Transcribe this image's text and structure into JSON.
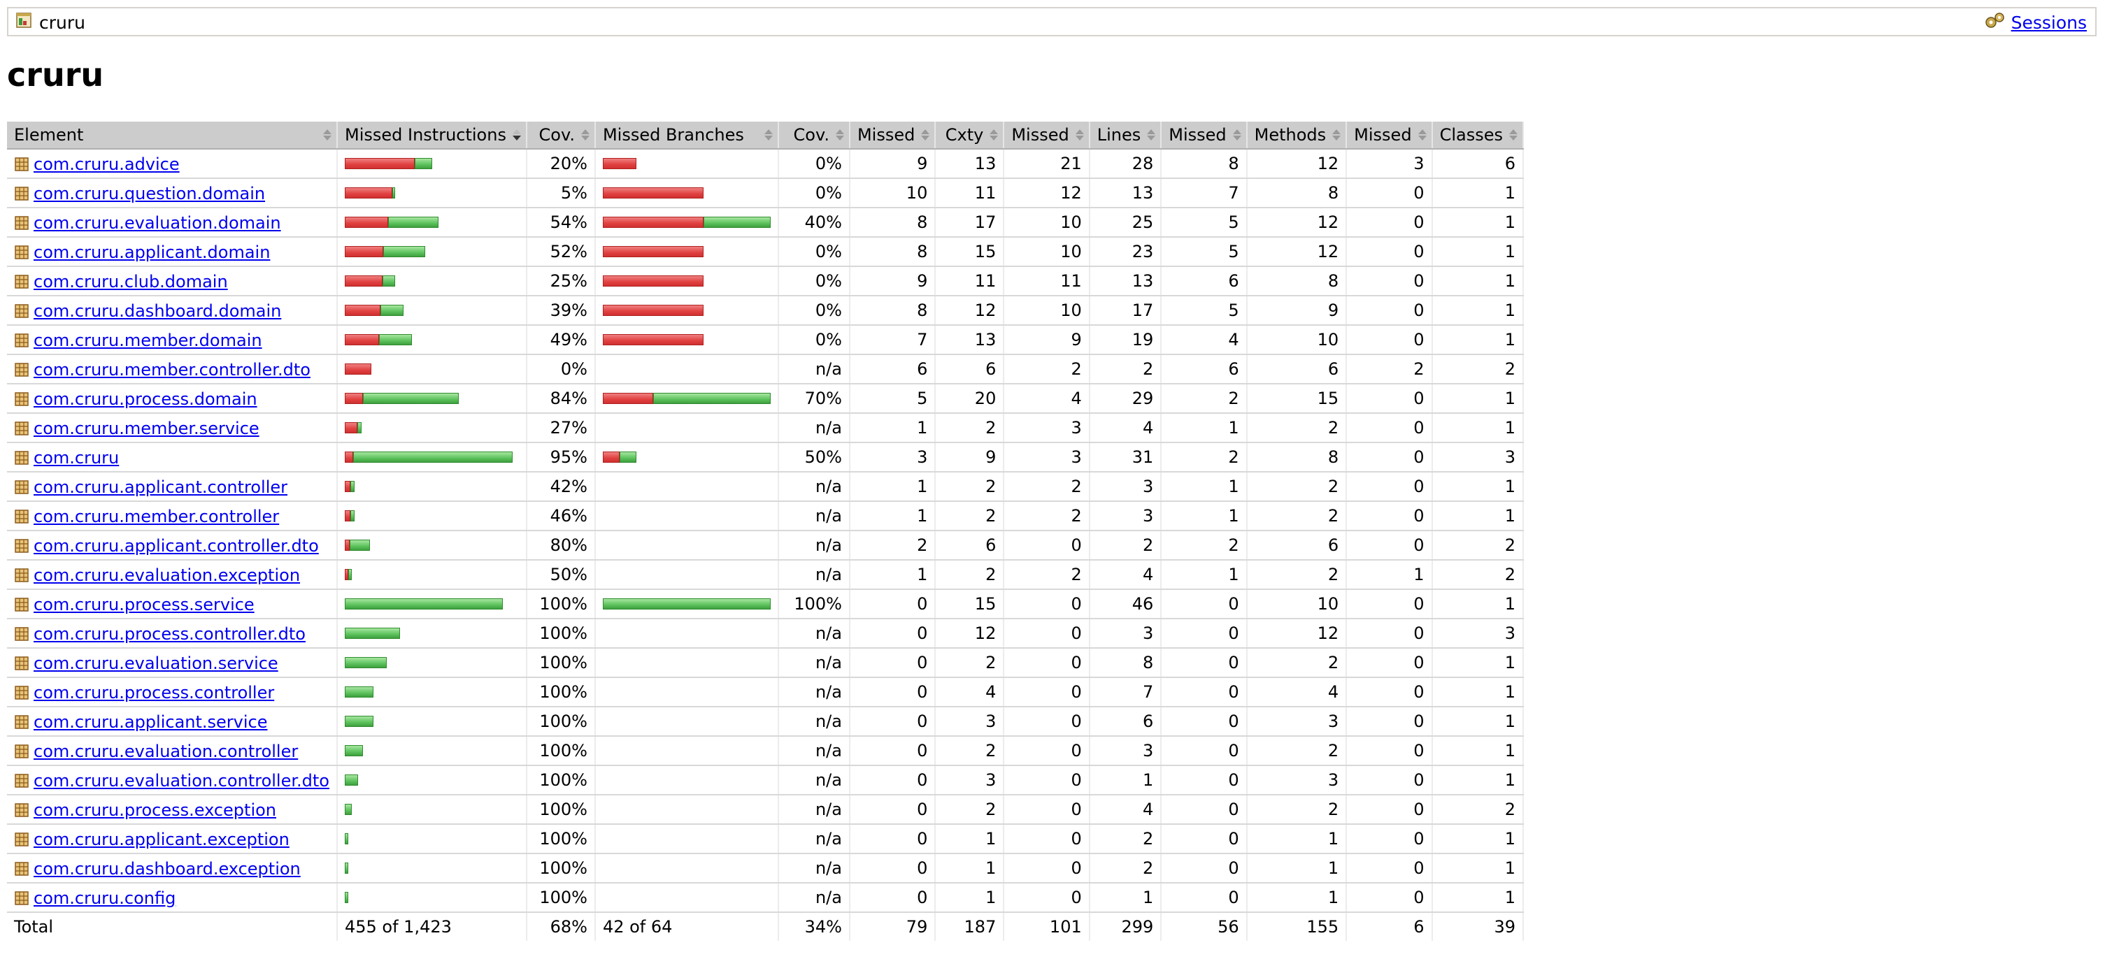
{
  "breadcrumb": {
    "title": "cruru",
    "sessions_label": "Sessions",
    "report_icon": "report-icon",
    "sessions_icon": "sessions-icon"
  },
  "page_title": "cruru",
  "colors": {
    "missed": "#e04040",
    "covered": "#5cc25c",
    "header_bg": "#cccccc",
    "link": "#0000ee"
  },
  "headers": [
    "Element",
    "Missed Instructions",
    "Cov.",
    "Missed Branches",
    "Cov.",
    "Missed",
    "Cxty",
    "Missed",
    "Lines",
    "Missed",
    "Methods",
    "Missed",
    "Classes"
  ],
  "rows": [
    {
      "name": "com.cruru.advice",
      "instr_missed_frac": 0.8,
      "instr_scale": 0.52,
      "instr_cov": "20%",
      "br_missed_frac": 1.0,
      "br_scale": 0.2,
      "br_cov": "0%",
      "cxty_missed": "9",
      "cxty": "13",
      "lines_missed": "21",
      "lines": "28",
      "methods_missed": "8",
      "methods": "12",
      "classes_missed": "3",
      "classes": "6"
    },
    {
      "name": "com.cruru.question.domain",
      "instr_missed_frac": 0.95,
      "instr_scale": 0.3,
      "instr_cov": "5%",
      "br_missed_frac": 1.0,
      "br_scale": 0.6,
      "br_cov": "0%",
      "cxty_missed": "10",
      "cxty": "11",
      "lines_missed": "12",
      "lines": "13",
      "methods_missed": "7",
      "methods": "8",
      "classes_missed": "0",
      "classes": "1"
    },
    {
      "name": "com.cruru.evaluation.domain",
      "instr_missed_frac": 0.46,
      "instr_scale": 0.56,
      "instr_cov": "54%",
      "br_missed_frac": 0.6,
      "br_scale": 1.0,
      "br_cov": "40%",
      "cxty_missed": "8",
      "cxty": "17",
      "lines_missed": "10",
      "lines": "25",
      "methods_missed": "5",
      "methods": "12",
      "classes_missed": "0",
      "classes": "1"
    },
    {
      "name": "com.cruru.applicant.domain",
      "instr_missed_frac": 0.48,
      "instr_scale": 0.48,
      "instr_cov": "52%",
      "br_missed_frac": 1.0,
      "br_scale": 0.6,
      "br_cov": "0%",
      "cxty_missed": "8",
      "cxty": "15",
      "lines_missed": "10",
      "lines": "23",
      "methods_missed": "5",
      "methods": "12",
      "classes_missed": "0",
      "classes": "1"
    },
    {
      "name": "com.cruru.club.domain",
      "instr_missed_frac": 0.75,
      "instr_scale": 0.3,
      "instr_cov": "25%",
      "br_missed_frac": 1.0,
      "br_scale": 0.6,
      "br_cov": "0%",
      "cxty_missed": "9",
      "cxty": "11",
      "lines_missed": "11",
      "lines": "13",
      "methods_missed": "6",
      "methods": "8",
      "classes_missed": "0",
      "classes": "1"
    },
    {
      "name": "com.cruru.dashboard.domain",
      "instr_missed_frac": 0.61,
      "instr_scale": 0.35,
      "instr_cov": "39%",
      "br_missed_frac": 1.0,
      "br_scale": 0.6,
      "br_cov": "0%",
      "cxty_missed": "8",
      "cxty": "12",
      "lines_missed": "10",
      "lines": "17",
      "methods_missed": "5",
      "methods": "9",
      "classes_missed": "0",
      "classes": "1"
    },
    {
      "name": "com.cruru.member.domain",
      "instr_missed_frac": 0.51,
      "instr_scale": 0.4,
      "instr_cov": "49%",
      "br_missed_frac": 1.0,
      "br_scale": 0.6,
      "br_cov": "0%",
      "cxty_missed": "7",
      "cxty": "13",
      "lines_missed": "9",
      "lines": "19",
      "methods_missed": "4",
      "methods": "10",
      "classes_missed": "0",
      "classes": "1"
    },
    {
      "name": "com.cruru.member.controller.dto",
      "instr_missed_frac": 1.0,
      "instr_scale": 0.16,
      "instr_cov": "0%",
      "br_missed_frac": 0,
      "br_scale": 0,
      "br_cov": "n/a",
      "cxty_missed": "6",
      "cxty": "6",
      "lines_missed": "2",
      "lines": "2",
      "methods_missed": "6",
      "methods": "6",
      "classes_missed": "2",
      "classes": "2"
    },
    {
      "name": "com.cruru.process.domain",
      "instr_missed_frac": 0.16,
      "instr_scale": 0.68,
      "instr_cov": "84%",
      "br_missed_frac": 0.3,
      "br_scale": 1.0,
      "br_cov": "70%",
      "cxty_missed": "5",
      "cxty": "20",
      "lines_missed": "4",
      "lines": "29",
      "methods_missed": "2",
      "methods": "15",
      "classes_missed": "0",
      "classes": "1"
    },
    {
      "name": "com.cruru.member.service",
      "instr_missed_frac": 0.73,
      "instr_scale": 0.1,
      "instr_cov": "27%",
      "br_missed_frac": 0,
      "br_scale": 0,
      "br_cov": "n/a",
      "cxty_missed": "1",
      "cxty": "2",
      "lines_missed": "3",
      "lines": "4",
      "methods_missed": "1",
      "methods": "2",
      "classes_missed": "0",
      "classes": "1"
    },
    {
      "name": "com.cruru",
      "instr_missed_frac": 0.05,
      "instr_scale": 1.0,
      "instr_cov": "95%",
      "br_missed_frac": 0.5,
      "br_scale": 0.2,
      "br_cov": "50%",
      "cxty_missed": "3",
      "cxty": "9",
      "lines_missed": "3",
      "lines": "31",
      "methods_missed": "2",
      "methods": "8",
      "classes_missed": "0",
      "classes": "3"
    },
    {
      "name": "com.cruru.applicant.controller",
      "instr_missed_frac": 0.58,
      "instr_scale": 0.06,
      "instr_cov": "42%",
      "br_missed_frac": 0,
      "br_scale": 0,
      "br_cov": "n/a",
      "cxty_missed": "1",
      "cxty": "2",
      "lines_missed": "2",
      "lines": "3",
      "methods_missed": "1",
      "methods": "2",
      "classes_missed": "0",
      "classes": "1"
    },
    {
      "name": "com.cruru.member.controller",
      "instr_missed_frac": 0.54,
      "instr_scale": 0.06,
      "instr_cov": "46%",
      "br_missed_frac": 0,
      "br_scale": 0,
      "br_cov": "n/a",
      "cxty_missed": "1",
      "cxty": "2",
      "lines_missed": "2",
      "lines": "3",
      "methods_missed": "1",
      "methods": "2",
      "classes_missed": "0",
      "classes": "1"
    },
    {
      "name": "com.cruru.applicant.controller.dto",
      "instr_missed_frac": 0.2,
      "instr_scale": 0.15,
      "instr_cov": "80%",
      "br_missed_frac": 0,
      "br_scale": 0,
      "br_cov": "n/a",
      "cxty_missed": "2",
      "cxty": "6",
      "lines_missed": "0",
      "lines": "2",
      "methods_missed": "2",
      "methods": "6",
      "classes_missed": "0",
      "classes": "2"
    },
    {
      "name": "com.cruru.evaluation.exception",
      "instr_missed_frac": 0.5,
      "instr_scale": 0.04,
      "instr_cov": "50%",
      "br_missed_frac": 0,
      "br_scale": 0,
      "br_cov": "n/a",
      "cxty_missed": "1",
      "cxty": "2",
      "lines_missed": "2",
      "lines": "4",
      "methods_missed": "1",
      "methods": "2",
      "classes_missed": "1",
      "classes": "2"
    },
    {
      "name": "com.cruru.process.service",
      "instr_missed_frac": 0,
      "instr_scale": 0.94,
      "instr_cov": "100%",
      "br_missed_frac": 0,
      "br_scale": 1.0,
      "br_cov": "100%",
      "cxty_missed": "0",
      "cxty": "15",
      "lines_missed": "0",
      "lines": "46",
      "methods_missed": "0",
      "methods": "10",
      "classes_missed": "0",
      "classes": "1"
    },
    {
      "name": "com.cruru.process.controller.dto",
      "instr_missed_frac": 0,
      "instr_scale": 0.33,
      "instr_cov": "100%",
      "br_missed_frac": 0,
      "br_scale": 0,
      "br_cov": "n/a",
      "cxty_missed": "0",
      "cxty": "12",
      "lines_missed": "0",
      "lines": "3",
      "methods_missed": "0",
      "methods": "12",
      "classes_missed": "0",
      "classes": "3"
    },
    {
      "name": "com.cruru.evaluation.service",
      "instr_missed_frac": 0,
      "instr_scale": 0.25,
      "instr_cov": "100%",
      "br_missed_frac": 0,
      "br_scale": 0,
      "br_cov": "n/a",
      "cxty_missed": "0",
      "cxty": "2",
      "lines_missed": "0",
      "lines": "8",
      "methods_missed": "0",
      "methods": "2",
      "classes_missed": "0",
      "classes": "1"
    },
    {
      "name": "com.cruru.process.controller",
      "instr_missed_frac": 0,
      "instr_scale": 0.17,
      "instr_cov": "100%",
      "br_missed_frac": 0,
      "br_scale": 0,
      "br_cov": "n/a",
      "cxty_missed": "0",
      "cxty": "4",
      "lines_missed": "0",
      "lines": "7",
      "methods_missed": "0",
      "methods": "4",
      "classes_missed": "0",
      "classes": "1"
    },
    {
      "name": "com.cruru.applicant.service",
      "instr_missed_frac": 0,
      "instr_scale": 0.17,
      "instr_cov": "100%",
      "br_missed_frac": 0,
      "br_scale": 0,
      "br_cov": "n/a",
      "cxty_missed": "0",
      "cxty": "3",
      "lines_missed": "0",
      "lines": "6",
      "methods_missed": "0",
      "methods": "3",
      "classes_missed": "0",
      "classes": "1"
    },
    {
      "name": "com.cruru.evaluation.controller",
      "instr_missed_frac": 0,
      "instr_scale": 0.11,
      "instr_cov": "100%",
      "br_missed_frac": 0,
      "br_scale": 0,
      "br_cov": "n/a",
      "cxty_missed": "0",
      "cxty": "2",
      "lines_missed": "0",
      "lines": "3",
      "methods_missed": "0",
      "methods": "2",
      "classes_missed": "0",
      "classes": "1"
    },
    {
      "name": "com.cruru.evaluation.controller.dto",
      "instr_missed_frac": 0,
      "instr_scale": 0.08,
      "instr_cov": "100%",
      "br_missed_frac": 0,
      "br_scale": 0,
      "br_cov": "n/a",
      "cxty_missed": "0",
      "cxty": "3",
      "lines_missed": "0",
      "lines": "1",
      "methods_missed": "0",
      "methods": "3",
      "classes_missed": "0",
      "classes": "1"
    },
    {
      "name": "com.cruru.process.exception",
      "instr_missed_frac": 0,
      "instr_scale": 0.04,
      "instr_cov": "100%",
      "br_missed_frac": 0,
      "br_scale": 0,
      "br_cov": "n/a",
      "cxty_missed": "0",
      "cxty": "2",
      "lines_missed": "0",
      "lines": "4",
      "methods_missed": "0",
      "methods": "2",
      "classes_missed": "0",
      "classes": "2"
    },
    {
      "name": "com.cruru.applicant.exception",
      "instr_missed_frac": 0,
      "instr_scale": 0.02,
      "instr_cov": "100%",
      "br_missed_frac": 0,
      "br_scale": 0,
      "br_cov": "n/a",
      "cxty_missed": "0",
      "cxty": "1",
      "lines_missed": "0",
      "lines": "2",
      "methods_missed": "0",
      "methods": "1",
      "classes_missed": "0",
      "classes": "1"
    },
    {
      "name": "com.cruru.dashboard.exception",
      "instr_missed_frac": 0,
      "instr_scale": 0.02,
      "instr_cov": "100%",
      "br_missed_frac": 0,
      "br_scale": 0,
      "br_cov": "n/a",
      "cxty_missed": "0",
      "cxty": "1",
      "lines_missed": "0",
      "lines": "2",
      "methods_missed": "0",
      "methods": "1",
      "classes_missed": "0",
      "classes": "1"
    },
    {
      "name": "com.cruru.config",
      "instr_missed_frac": 0,
      "instr_scale": 0.02,
      "instr_cov": "100%",
      "br_missed_frac": 0,
      "br_scale": 0,
      "br_cov": "n/a",
      "cxty_missed": "0",
      "cxty": "1",
      "lines_missed": "0",
      "lines": "1",
      "methods_missed": "0",
      "methods": "1",
      "classes_missed": "0",
      "classes": "1"
    }
  ],
  "total": {
    "label": "Total",
    "instr": "455 of 1,423",
    "instr_cov": "68%",
    "br": "42 of 64",
    "br_cov": "34%",
    "cxty_missed": "79",
    "cxty": "187",
    "lines_missed": "101",
    "lines": "299",
    "methods_missed": "56",
    "methods": "155",
    "classes_missed": "6",
    "classes": "39"
  }
}
